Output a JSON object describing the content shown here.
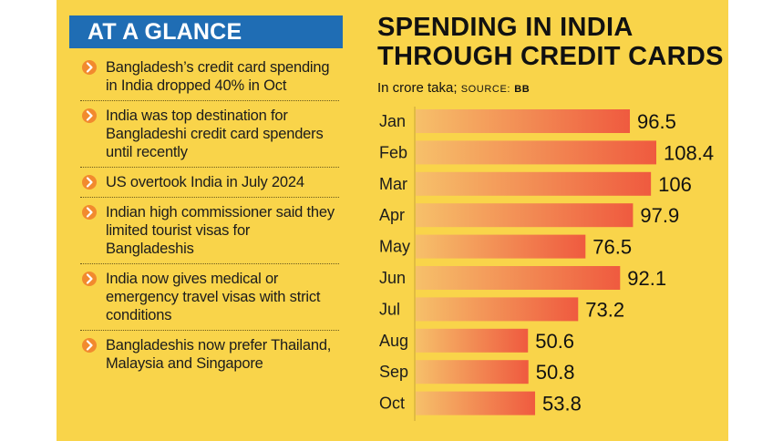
{
  "glance": {
    "heading": "AT A GLANCE",
    "items": [
      "Bangladesh’s credit card spending in India dropped 40% in Oct",
      "India was top destination for Bangladeshi credit card spenders until recently",
      "US overtook India in July 2024",
      "Indian high commissioner said they limited tourist visas for Bangladeshis",
      "India now gives medical or emergency travel visas with strict conditions",
      "Bangladeshis now prefer Thailand, Malaysia and Singapore"
    ]
  },
  "colors": {
    "background": "#f9d44a",
    "tag_blue": "#1f6db4",
    "bar_light": "#f6c06a",
    "bar_dark": "#ef5a3f",
    "bullet_orange": "#f28a2e"
  },
  "chart_data": {
    "type": "bar",
    "orientation": "horizontal",
    "title": "SPENDING IN INDIA THROUGH CREDIT CARDS",
    "subtitle": "In crore taka;",
    "source_label": "SOURCE:",
    "source": "BB",
    "categories": [
      "Jan",
      "Feb",
      "Mar",
      "Apr",
      "May",
      "Jun",
      "Jul",
      "Aug",
      "Sep",
      "Oct"
    ],
    "values": [
      96.5,
      108.4,
      106,
      97.9,
      76.5,
      92.1,
      73.2,
      50.6,
      50.8,
      53.8
    ],
    "value_labels": [
      "96.5",
      "108.4",
      "106",
      "97.9",
      "76.5",
      "92.1",
      "73.2",
      "50.6",
      "50.8",
      "53.8"
    ],
    "xlim": [
      0,
      108.4
    ]
  }
}
